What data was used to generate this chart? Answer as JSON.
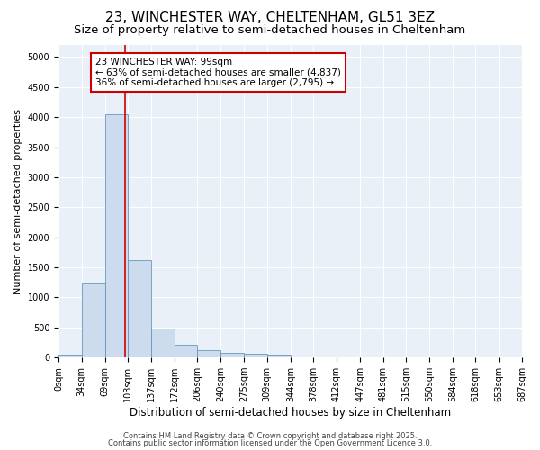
{
  "title": "23, WINCHESTER WAY, CHELTENHAM, GL51 3EZ",
  "subtitle": "Size of property relative to semi-detached houses in Cheltenham",
  "xlabel": "Distribution of semi-detached houses by size in Cheltenham",
  "ylabel": "Number of semi-detached properties",
  "bar_values": [
    50,
    1250,
    4050,
    1620,
    480,
    220,
    130,
    80,
    60,
    50,
    0,
    0,
    0,
    0,
    0,
    0,
    0,
    0,
    0,
    0
  ],
  "bin_edges": [
    0,
    34,
    69,
    103,
    137,
    172,
    206,
    240,
    275,
    309,
    344,
    378,
    412,
    447,
    481,
    515,
    550,
    584,
    618,
    653,
    687
  ],
  "bar_color": "#ccdcee",
  "bar_edge_color": "#6699bb",
  "property_size": 99,
  "property_line_color": "#cc0000",
  "annotation_line1": "23 WINCHESTER WAY: 99sqm",
  "annotation_line2": "← 63% of semi-detached houses are smaller (4,837)",
  "annotation_line3": "36% of semi-detached houses are larger (2,795) →",
  "annotation_box_color": "#ffffff",
  "annotation_box_edge_color": "#cc0000",
  "ylim": [
    0,
    5200
  ],
  "yticks": [
    0,
    500,
    1000,
    1500,
    2000,
    2500,
    3000,
    3500,
    4000,
    4500,
    5000
  ],
  "background_color": "#eaf0f8",
  "footer_line1": "Contains HM Land Registry data © Crown copyright and database right 2025.",
  "footer_line2": "Contains public sector information licensed under the Open Government Licence 3.0.",
  "title_fontsize": 11,
  "subtitle_fontsize": 9.5,
  "xlabel_fontsize": 8.5,
  "ylabel_fontsize": 8,
  "tick_fontsize": 7,
  "footer_fontsize": 6
}
